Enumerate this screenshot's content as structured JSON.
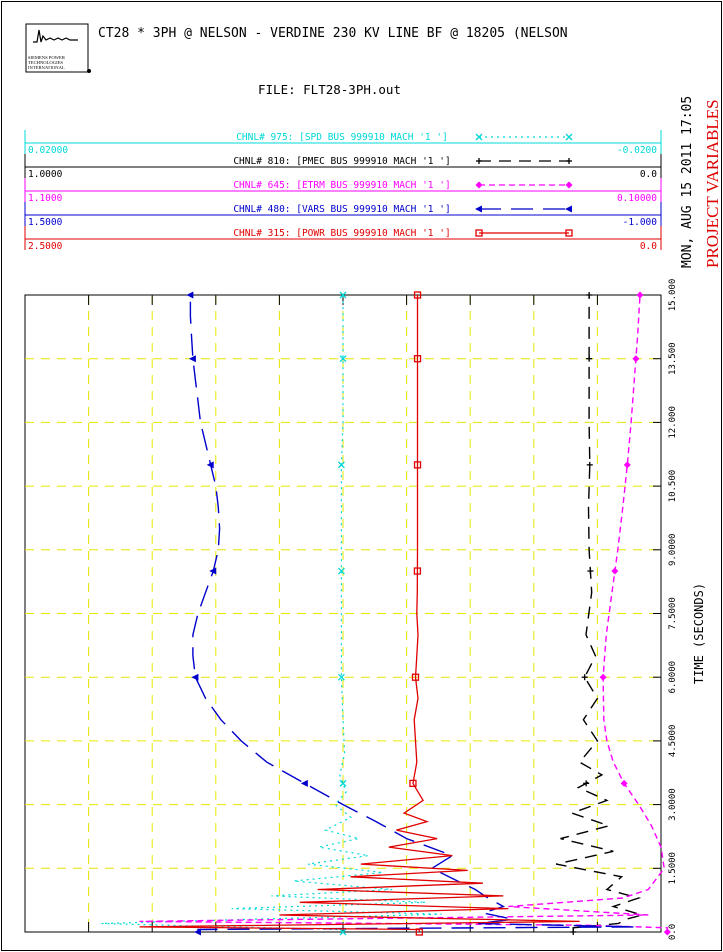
{
  "header": {
    "title": "CT28 * 3PH @ NELSON - VERDINE 230 KV LINE BF @ 18205 (NELSON",
    "file_label": "FILE: FLT28-3PH.out",
    "logo_lines": [
      "SIEMENS POWER",
      "TECHNOLOGIES",
      "INTERNATIONAL"
    ],
    "side_date": "MON, AUG 15 2011  17:05",
    "side_title": "PROJECT VARIABLES"
  },
  "colors": {
    "grid": "#e6e600",
    "frame": "#000000",
    "spd": "#00d8d8",
    "pmec": "#000000",
    "etrm": "#ff00ff",
    "vars": "#0000cc",
    "powr": "#e00000",
    "side_title": "#dd0000"
  },
  "chart_data": {
    "type": "line",
    "xlabel": "TIME (SECONDS)",
    "xlim": [
      0,
      15.0
    ],
    "x_ticks": [
      0.0,
      1.5,
      3.0,
      4.5,
      6.0,
      7.5,
      9.0,
      10.5,
      12.0,
      13.5,
      15.0
    ],
    "x_tick_labels": [
      "0.0",
      "1.5000",
      "3.0000",
      "4.5000",
      "6.0000",
      "7.5000",
      "9.0000",
      "10.500",
      "12.000",
      "13.500",
      "15.000"
    ],
    "grid": true,
    "series": [
      {
        "key": "spd",
        "name": "CHNL# 975: [SPD  BUS 999910 MACH '1 ']",
        "left_scale": "0.02000",
        "right_scale": "-0.0200",
        "ylim": [
          -0.02,
          0.02
        ],
        "x": [
          0,
          0.06,
          0.12,
          0.2,
          0.3,
          0.42,
          0.55,
          0.7,
          0.85,
          1.0,
          1.2,
          1.4,
          1.6,
          1.8,
          2.0,
          2.2,
          2.4,
          2.7,
          3.0,
          3.3,
          3.7,
          4.2,
          5.0,
          6.0,
          7.0,
          8.0,
          9.0,
          10.0,
          11.0,
          12.0,
          13.0,
          14.0,
          15.0
        ],
        "values": [
          0.0,
          0.0004,
          0.007,
          0.0152,
          0.0058,
          -0.0062,
          0.007,
          -0.0052,
          0.0045,
          -0.0031,
          0.0031,
          -0.0025,
          0.0022,
          -0.0016,
          0.0015,
          -0.001,
          0.0011,
          -0.0005,
          0.0005,
          -0.0002,
          0.0002,
          -0.0001,
          0.0,
          0.0001,
          0.0001,
          0.0001,
          0.0001,
          0.0001,
          0.0001,
          0.0,
          0.0,
          0.0,
          0.0
        ]
      },
      {
        "key": "pmec",
        "name": "CHNL# 810: [PMEC BUS 999910 MACH '1 ']",
        "left_scale": "1.0000",
        "right_scale": "0.0",
        "ylim": [
          0.0,
          1.0
        ],
        "x": [
          0,
          0.1,
          0.2,
          0.3,
          0.4,
          0.6,
          0.8,
          1.0,
          1.3,
          1.6,
          1.9,
          2.2,
          2.5,
          2.8,
          3.1,
          3.4,
          3.7,
          4.0,
          4.5,
          5.0,
          5.5,
          6.0,
          6.5,
          7.0,
          8.0,
          9.0,
          10.0,
          11.0,
          12.0,
          13.0,
          14.0,
          15.0
        ],
        "values": [
          0.138,
          0.138,
          0.067,
          0.055,
          0.03,
          0.075,
          0.035,
          0.085,
          0.062,
          0.165,
          0.075,
          0.158,
          0.082,
          0.14,
          0.085,
          0.13,
          0.093,
          0.128,
          0.1,
          0.122,
          0.1,
          0.12,
          0.103,
          0.118,
          0.109,
          0.113,
          0.114,
          0.112,
          0.113,
          0.113,
          0.113,
          0.113
        ]
      },
      {
        "key": "etrm",
        "name": "CHNL# 645: [ETRM BUS 999910 MACH '1 ']",
        "left_scale": "1.1000",
        "right_scale": "0.10000",
        "ylim": [
          0.1,
          1.1
        ],
        "x": [
          0,
          0.1,
          0.16,
          0.25,
          0.4,
          0.6,
          0.8,
          1.0,
          1.5,
          2.0,
          2.5,
          3.0,
          3.5,
          4.0,
          4.5,
          5.0,
          6.0,
          7.0,
          8.0,
          9.0,
          10.0,
          11.0,
          12.0,
          13.0,
          14.0,
          15.0
        ],
        "values": [
          0.09,
          0.09,
          0.22,
          0.92,
          0.12,
          0.34,
          0.16,
          0.12,
          0.095,
          0.1,
          0.115,
          0.135,
          0.158,
          0.175,
          0.185,
          0.19,
          0.191,
          0.186,
          0.177,
          0.168,
          0.16,
          0.153,
          0.147,
          0.142,
          0.137,
          0.133
        ]
      },
      {
        "key": "vars",
        "name": "CHNL# 480: [VARS BUS 999910 MACH '1 ']",
        "left_scale": "1.5000",
        "right_scale": "-1.000",
        "ylim": [
          -1.0,
          1.5
        ],
        "x": [
          0,
          0.06,
          0.12,
          0.2,
          0.3,
          0.45,
          0.6,
          0.8,
          1.0,
          1.2,
          1.5,
          1.8,
          2.2,
          2.6,
          3.0,
          3.5,
          4.0,
          4.5,
          5.0,
          5.5,
          6.0,
          6.5,
          7.0,
          7.5,
          8.0,
          8.5,
          9.0,
          9.5,
          10.0,
          10.5,
          11.0,
          11.5,
          12.0,
          12.5,
          13.0,
          13.5,
          14.0,
          14.5,
          15.0
        ],
        "values": [
          0.82,
          0.82,
          -0.9,
          -0.28,
          -0.42,
          -0.3,
          -0.38,
          -0.32,
          -0.27,
          -0.2,
          -0.1,
          -0.18,
          0.0,
          0.12,
          0.25,
          0.4,
          0.55,
          0.65,
          0.73,
          0.79,
          0.83,
          0.84,
          0.84,
          0.82,
          0.79,
          0.76,
          0.74,
          0.735,
          0.74,
          0.75,
          0.77,
          0.79,
          0.81,
          0.82,
          0.83,
          0.84,
          0.845,
          0.85,
          0.85
        ]
      },
      {
        "key": "powr",
        "name": "CHNL# 315: [POWR BUS 999910 MACH '1 ']",
        "left_scale": "2.5000",
        "right_scale": "0.0",
        "ylim": [
          0.0,
          2.5
        ],
        "x": [
          0,
          0.06,
          0.12,
          0.25,
          0.4,
          0.55,
          0.7,
          0.85,
          1.0,
          1.15,
          1.3,
          1.45,
          1.6,
          1.8,
          2.0,
          2.2,
          2.4,
          2.6,
          2.8,
          3.1,
          3.5,
          4.0,
          4.5,
          5.0,
          5.5,
          6.0,
          6.5,
          7.0,
          7.5,
          8.0,
          9.0,
          10.0,
          11.0,
          12.0,
          13.0,
          14.0,
          15.0
        ],
        "values": [
          0.95,
          0.95,
          2.05,
          0.32,
          1.5,
          0.6,
          1.42,
          0.62,
          1.35,
          0.7,
          1.22,
          0.76,
          1.18,
          0.82,
          1.07,
          0.88,
          1.04,
          0.92,
          1.01,
          0.935,
          0.975,
          0.96,
          0.965,
          0.97,
          0.955,
          0.965,
          0.96,
          0.955,
          0.96,
          0.958,
          0.957,
          0.957,
          0.957,
          0.957,
          0.957,
          0.957,
          0.957
        ]
      }
    ]
  }
}
